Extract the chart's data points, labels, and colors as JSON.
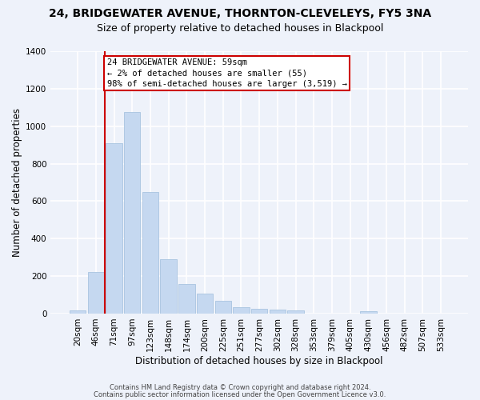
{
  "title1": "24, BRIDGEWATER AVENUE, THORNTON-CLEVELEYS, FY5 3NA",
  "title2": "Size of property relative to detached houses in Blackpool",
  "xlabel": "Distribution of detached houses by size in Blackpool",
  "ylabel": "Number of detached properties",
  "footer1": "Contains HM Land Registry data © Crown copyright and database right 2024.",
  "footer2": "Contains public sector information licensed under the Open Government Licence v3.0.",
  "annotation_line1": "24 BRIDGEWATER AVENUE: 59sqm",
  "annotation_line2": "← 2% of detached houses are smaller (55)",
  "annotation_line3": "98% of semi-detached houses are larger (3,519) →",
  "bar_color": "#c5d8f0",
  "bar_edgecolor": "#a8c4e0",
  "vline_color": "#cc0000",
  "vline_x": 1.5,
  "categories": [
    "20sqm",
    "46sqm",
    "71sqm",
    "97sqm",
    "123sqm",
    "148sqm",
    "174sqm",
    "200sqm",
    "225sqm",
    "251sqm",
    "277sqm",
    "302sqm",
    "328sqm",
    "353sqm",
    "379sqm",
    "405sqm",
    "430sqm",
    "456sqm",
    "482sqm",
    "507sqm",
    "533sqm"
  ],
  "values": [
    15,
    220,
    910,
    1075,
    650,
    290,
    158,
    105,
    68,
    35,
    25,
    22,
    18,
    0,
    0,
    0,
    12,
    0,
    0,
    0,
    0
  ],
  "ylim": [
    0,
    1400
  ],
  "yticks": [
    0,
    200,
    400,
    600,
    800,
    1000,
    1200,
    1400
  ],
  "background_color": "#eef2fa",
  "grid_color": "#ffffff",
  "title1_fontsize": 10,
  "title2_fontsize": 9,
  "xlabel_fontsize": 8.5,
  "ylabel_fontsize": 8.5,
  "tick_fontsize": 7.5,
  "footer_fontsize": 6.0,
  "annotation_fontsize": 7.5
}
